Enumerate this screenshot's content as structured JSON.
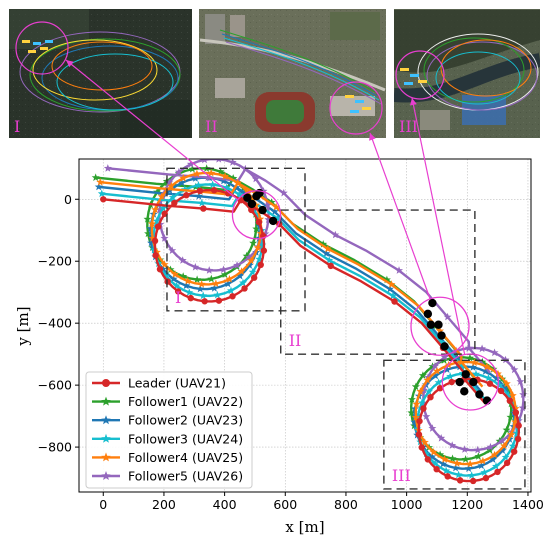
{
  "insets": [
    {
      "label": "I",
      "theme": "dark"
    },
    {
      "label": "II",
      "theme": "campus"
    },
    {
      "label": "III",
      "theme": "river"
    }
  ],
  "colors": {
    "leader": "#d62728",
    "follower1": "#2ca02c",
    "follower2": "#1f77b4",
    "follower3": "#17becf",
    "follower4": "#ff7f0e",
    "follower5": "#9467bd",
    "highlight": "#e83fd0",
    "uav_dot": "#000000",
    "zone_box": "#333333"
  },
  "chart_data": {
    "type": "line",
    "xlabel": "x [m]",
    "ylabel": "y [m]",
    "xlim": [
      -80,
      1410
    ],
    "ylim": [
      -945,
      130
    ],
    "xticks": [
      0,
      200,
      400,
      600,
      800,
      1000,
      1200,
      1400
    ],
    "yticks": [
      0,
      -200,
      -400,
      -600,
      -800
    ],
    "xtick_labels": [
      "0",
      "200",
      "400",
      "600",
      "800",
      "1000",
      "1200",
      "1400"
    ],
    "ytick_labels": [
      "0",
      "−200",
      "−400",
      "−600",
      "−800"
    ],
    "grid": true,
    "legend_position": "lower-left",
    "series": [
      {
        "name": "Leader (UAV21)",
        "marker": "circle",
        "color_key": "leader",
        "offset": [
          0,
          0
        ]
      },
      {
        "name": "Follower1 (UAV22)",
        "marker": "star",
        "color_key": "follower1",
        "offset": [
          -25,
          70
        ]
      },
      {
        "name": "Follower2 (UAV23)",
        "marker": "star",
        "color_key": "follower2",
        "offset": [
          -15,
          40
        ]
      },
      {
        "name": "Follower3 (UAV24)",
        "marker": "star",
        "color_key": "follower3",
        "offset": [
          -5,
          18
        ]
      },
      {
        "name": "Follower4 (UAV25)",
        "marker": "star",
        "color_key": "follower4",
        "offset": [
          -10,
          55
        ]
      },
      {
        "name": "Follower5 (UAV26)",
        "marker": "star",
        "color_key": "follower5",
        "offset": [
          15,
          100
        ]
      }
    ],
    "leader_path": [
      [
        0,
        0
      ],
      [
        200,
        -20
      ],
      [
        330,
        -30
      ],
      [
        430,
        -40
      ],
      {
        "loop": {
          "center": [
            350,
            -150
          ],
          "radius": 180,
          "start_angle_deg": 55,
          "sweep_deg": -360
        }
      },
      [
        520,
        -40
      ],
      [
        580,
        -80
      ],
      [
        650,
        -150
      ],
      [
        750,
        -215
      ],
      [
        850,
        -265
      ],
      [
        960,
        -330
      ],
      [
        1050,
        -400
      ],
      [
        1120,
        -480
      ],
      [
        1190,
        -560
      ],
      {
        "loop": {
          "center": [
            1205,
            -745
          ],
          "radius": 165,
          "start_angle_deg": 95,
          "sweep_deg": -360
        }
      },
      [
        1260,
        -660
      ]
    ],
    "zones": [
      {
        "label": "I",
        "x": [
          210,
          665
        ],
        "y": [
          -360,
          100
        ]
      },
      {
        "label": "II",
        "x": [
          585,
          1225
        ],
        "y": [
          -500,
          -35
        ]
      },
      {
        "label": "III",
        "x": [
          925,
          1390
        ],
        "y": [
          -935,
          -520
        ]
      }
    ],
    "highlight_circles": [
      {
        "center": [
          505,
          -50
        ],
        "r_px": 24
      },
      {
        "center": [
          1110,
          -410
        ],
        "r_px": 29
      },
      {
        "center": [
          1210,
          -590
        ],
        "r_px": 28
      }
    ],
    "uav_positions": [
      [
        475,
        5
      ],
      [
        490,
        -15
      ],
      [
        505,
        10
      ],
      [
        515,
        20
      ],
      [
        525,
        -35
      ],
      [
        560,
        -70
      ],
      [
        1085,
        -335
      ],
      [
        1070,
        -370
      ],
      [
        1080,
        -405
      ],
      [
        1105,
        -405
      ],
      [
        1115,
        -440
      ],
      [
        1125,
        -475
      ],
      [
        1195,
        -565
      ],
      [
        1175,
        -590
      ],
      [
        1220,
        -590
      ],
      [
        1190,
        -620
      ],
      [
        1240,
        -630
      ],
      [
        1265,
        -650
      ]
    ]
  }
}
